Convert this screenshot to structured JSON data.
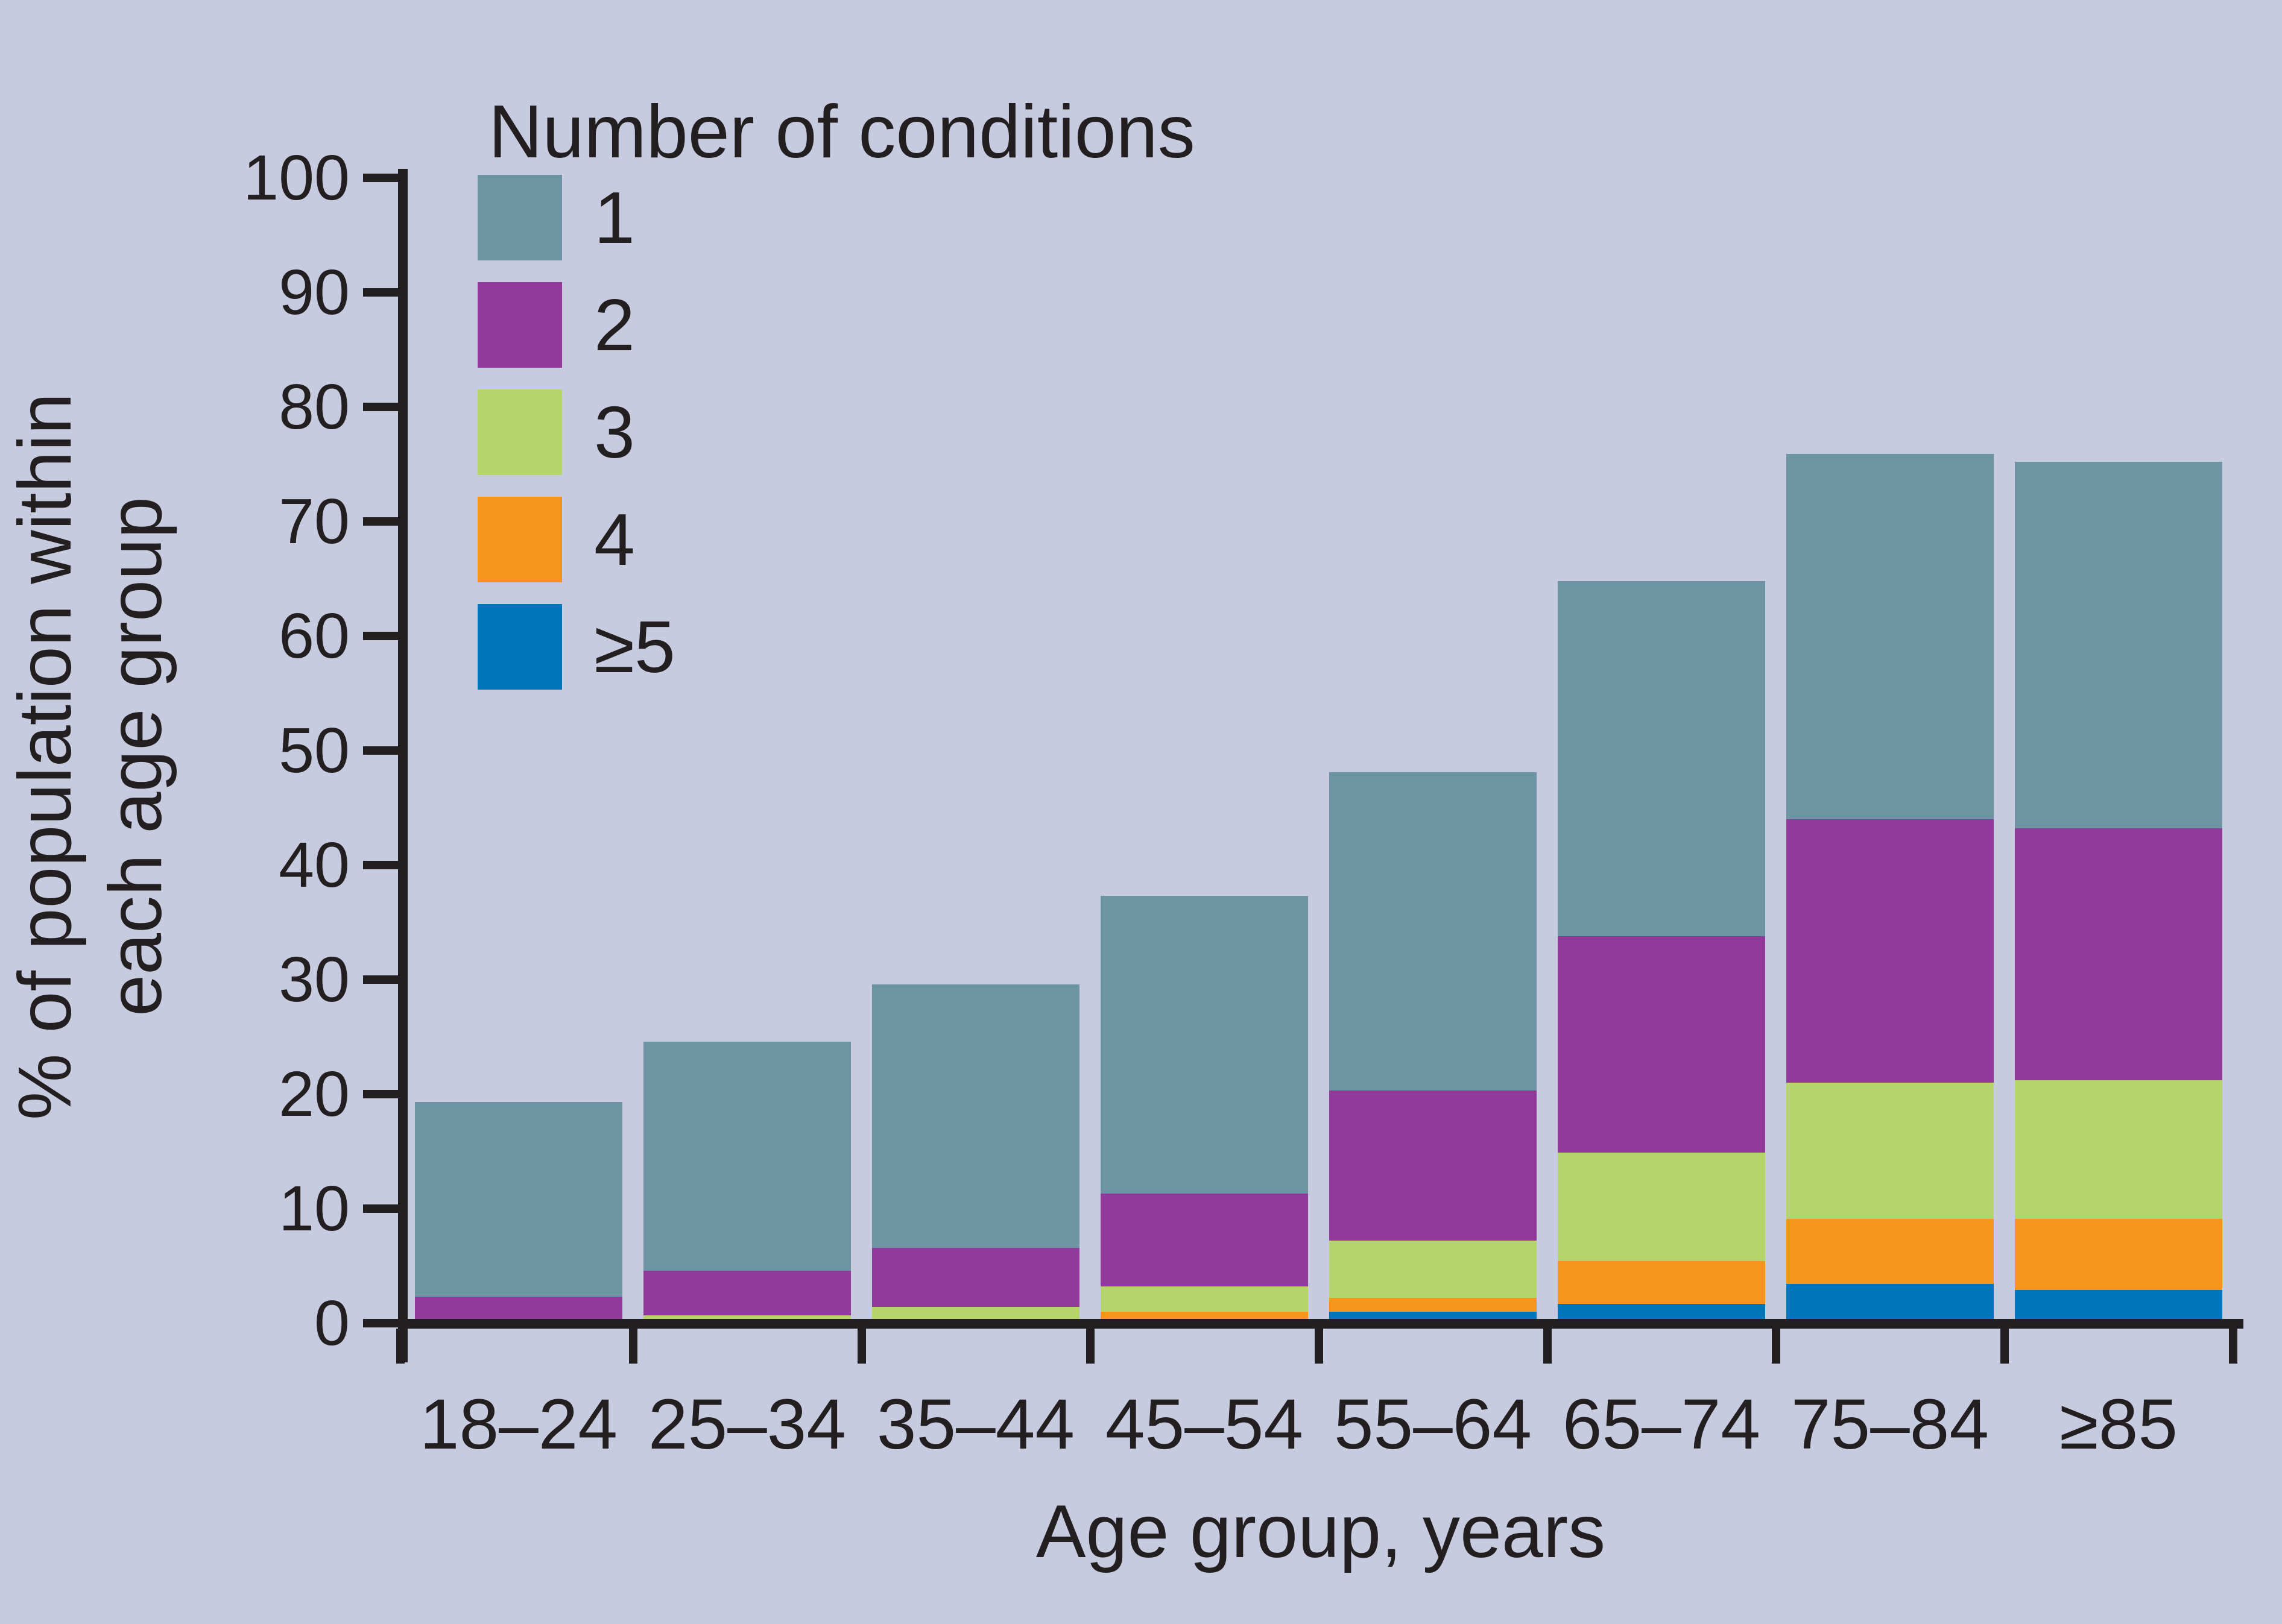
{
  "chart_data": {
    "type": "bar",
    "stacked": true,
    "legend_title": "Number of conditions",
    "xlabel": "Age group, years",
    "ylabel": "% of population within\neach age group",
    "categories": [
      "18–24",
      "25–34",
      "35–44",
      "45–54",
      "55–64",
      "65–74",
      "75–84",
      "≥85"
    ],
    "series": [
      {
        "name": "1",
        "color": "#6e93a3",
        "values": [
          17.0,
          20.0,
          23.0,
          26.0,
          27.8,
          31.0,
          31.9,
          32.0
        ]
      },
      {
        "name": "2",
        "color": "#923a99",
        "values": [
          2.3,
          3.9,
          5.2,
          8.1,
          13.1,
          18.9,
          23.0,
          22.0
        ]
      },
      {
        "name": "3",
        "color": "#b5d46b",
        "values": [
          0,
          0.7,
          1.4,
          2.2,
          5.0,
          9.5,
          11.9,
          12.1
        ]
      },
      {
        "name": "4",
        "color": "#f6941e",
        "values": [
          0,
          0,
          0,
          1.0,
          1.2,
          3.7,
          5.7,
          6.2
        ]
      },
      {
        "name": "≥5",
        "color": "#0075bc",
        "values": [
          0,
          0,
          0,
          0,
          1.0,
          1.7,
          3.4,
          2.9
        ]
      }
    ],
    "stack_order_bottom_to_top": [
      "≥5",
      "4",
      "3",
      "2",
      "1"
    ],
    "totals": [
      19.3,
      24.6,
      29.6,
      37.3,
      48.1,
      64.8,
      75.9,
      75.2
    ],
    "y_ticks": [
      0,
      10,
      20,
      30,
      40,
      50,
      60,
      70,
      80,
      90,
      100
    ],
    "ylim": [
      0,
      100
    ],
    "grid": false,
    "legend_position": "top-left-inside",
    "background_color": "#c7cbdf",
    "ink_color": "#231f20"
  }
}
